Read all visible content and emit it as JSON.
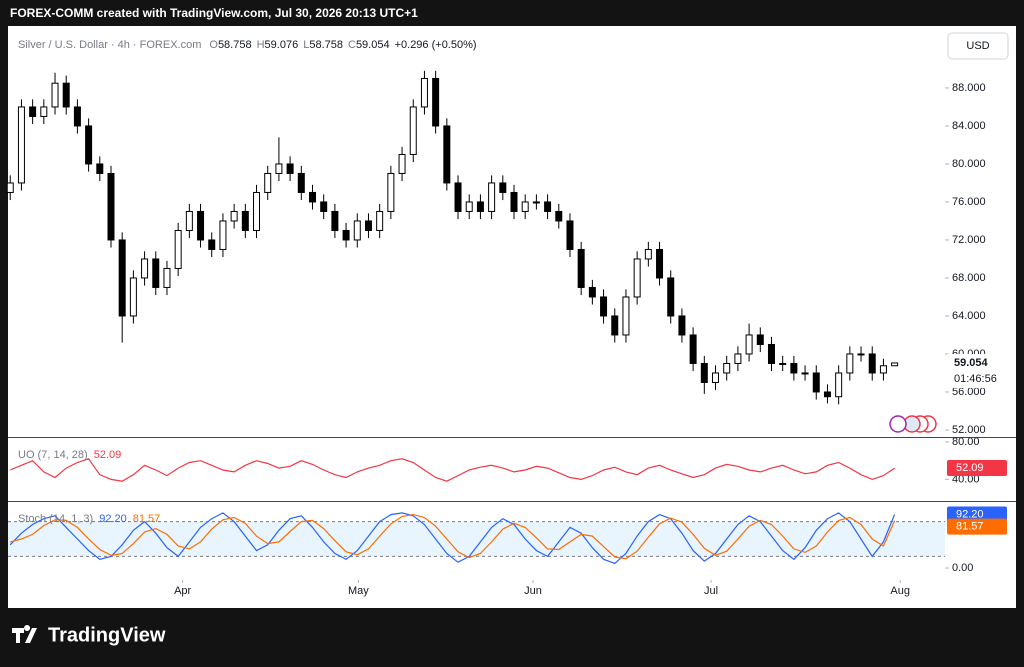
{
  "header": {
    "attribution": "FOREX-COMM created with TradingView.com, Jul 30, 2026 20:13 UTC+1"
  },
  "chart_data": {
    "type": "candlestick",
    "title": "Silver / U.S. Dollar · 4h · FOREX.com",
    "ohlc_prefixes": [
      "O",
      "H",
      "L",
      "C"
    ],
    "change": "+0.296 (+0.50%)",
    "currency": "USD",
    "countdown": "01:46:56",
    "up_color": "#ffffff",
    "down_color": "#000000",
    "wick_color": "#000000",
    "open": [
      77,
      78,
      86,
      85,
      86,
      88.5,
      86,
      84,
      80,
      79,
      72,
      64,
      68,
      70,
      67,
      69,
      73,
      75,
      72,
      71,
      74,
      75,
      73,
      77,
      79,
      80,
      79,
      77,
      76,
      75,
      73,
      72,
      74,
      73,
      75,
      79,
      81,
      86,
      89,
      84,
      78,
      75,
      76,
      75,
      78,
      77,
      75,
      76,
      76,
      75,
      74,
      71,
      67,
      66,
      64,
      62,
      66,
      70,
      71,
      68,
      64,
      62,
      59,
      57,
      58,
      59,
      60,
      62,
      61,
      59,
      59,
      58,
      58,
      56,
      55.5,
      58,
      60,
      60,
      58,
      58.758
    ],
    "high": [
      78.8,
      86.8,
      86.8,
      86.8,
      89.6,
      89.3,
      86.8,
      84.8,
      80.8,
      79.8,
      72.8,
      68.8,
      70.8,
      70.8,
      69.8,
      73.8,
      75.8,
      75.8,
      72.8,
      74.8,
      75.8,
      75.8,
      77.8,
      79.8,
      82.8,
      80.8,
      79.8,
      77.8,
      76.8,
      75.8,
      73.8,
      74.8,
      74.8,
      75.8,
      79.8,
      81.8,
      86.8,
      89.8,
      89.8,
      84.8,
      78.8,
      76.8,
      76.8,
      78.8,
      78.8,
      77.8,
      76.8,
      76.8,
      76.8,
      75.8,
      74.8,
      71.8,
      67.8,
      66.8,
      64.8,
      66.8,
      70.8,
      71.8,
      71.8,
      68.8,
      64.8,
      62.8,
      59.8,
      58.8,
      59.8,
      60.8,
      63.2,
      62.8,
      61.8,
      59.8,
      59.8,
      58.8,
      58.8,
      56.8,
      58.8,
      60.8,
      60.8,
      60.8,
      59.5,
      59.076
    ],
    "low": [
      76.2,
      77.2,
      84.2,
      84.2,
      85.2,
      85.2,
      83.2,
      79.2,
      78.2,
      71.2,
      61.2,
      63.2,
      67.2,
      66.2,
      66.2,
      68.2,
      72.2,
      71.2,
      70.2,
      70.2,
      73.2,
      72.2,
      72.2,
      76.2,
      78.2,
      78.2,
      76.2,
      75.2,
      74.2,
      72.2,
      71.2,
      71.2,
      72.2,
      72.2,
      74.2,
      78.2,
      80.2,
      85.2,
      83.2,
      77.2,
      74.2,
      74.2,
      74.2,
      74.2,
      76.2,
      74.2,
      74.2,
      75.2,
      74.2,
      73.2,
      70.2,
      66.2,
      65.2,
      63.2,
      61.2,
      61.2,
      65.2,
      69.2,
      67.2,
      63.2,
      61.2,
      58.2,
      55.8,
      56.2,
      57.2,
      58.2,
      59.2,
      60.2,
      58.2,
      58.2,
      57.2,
      57.2,
      55.2,
      54.8,
      54.7,
      57.2,
      59.2,
      57.2,
      57.2,
      58.758
    ],
    "close": [
      78,
      86,
      85,
      86,
      88.5,
      86,
      84,
      80,
      79,
      72,
      64,
      68,
      70,
      67,
      69,
      73,
      75,
      72,
      71,
      74,
      75,
      73,
      77,
      79,
      80,
      79,
      77,
      76,
      75,
      73,
      72,
      74,
      73,
      75,
      79,
      81,
      86,
      89,
      84,
      78,
      75,
      76,
      75,
      78,
      77,
      75,
      76,
      76,
      75,
      74,
      71,
      67,
      66,
      64,
      62,
      66,
      70,
      71,
      68,
      64,
      62,
      59,
      57,
      58,
      59,
      60,
      62,
      61,
      59,
      59,
      58,
      58,
      56,
      55.5,
      58,
      60,
      60,
      58,
      58.758,
      59.054
    ],
    "ylim": [
      51.26,
      94.1
    ],
    "yticks": [
      {
        "value": 52,
        "label": "52.000"
      },
      {
        "value": 56,
        "label": "56.000"
      },
      {
        "value": 60,
        "label": "60.000"
      },
      {
        "value": 64,
        "label": "64.000"
      },
      {
        "value": 68,
        "label": "68.000"
      },
      {
        "value": 72,
        "label": "72.000"
      },
      {
        "value": 76,
        "label": "76.000"
      },
      {
        "value": 80,
        "label": "80.000"
      },
      {
        "value": 84,
        "label": "84.000"
      },
      {
        "value": 88,
        "label": "88.000"
      }
    ],
    "xlim": [
      -0.2,
      83.5
    ],
    "xticks": [
      {
        "value": 15.4,
        "label": "Apr"
      },
      {
        "value": 31.1,
        "label": "May"
      },
      {
        "value": 46.7,
        "label": "Jun"
      },
      {
        "value": 62.6,
        "label": "Jul"
      },
      {
        "value": 79.5,
        "label": "Aug"
      }
    ]
  },
  "indicators": [
    {
      "type": "line",
      "title": "UO (7, 14, 28)",
      "ylim": [
        17.9,
        83.2
      ],
      "yticks": [
        {
          "value": 40,
          "label": "40.00"
        },
        {
          "value": 80,
          "label": "80.00"
        }
      ],
      "series": [
        {
          "color": "#f23645",
          "values": [
            50,
            55,
            60,
            48,
            42,
            52,
            58,
            62,
            45,
            40,
            38,
            45,
            55,
            50,
            44,
            52,
            58,
            60,
            55,
            50,
            48,
            55,
            60,
            57,
            52,
            54,
            60,
            56,
            50,
            45,
            42,
            48,
            52,
            55,
            60,
            62,
            58,
            50,
            42,
            38,
            44,
            50,
            53,
            55,
            52,
            48,
            50,
            54,
            52,
            47,
            42,
            40,
            44,
            50,
            53,
            48,
            45,
            52,
            55,
            50,
            46,
            42,
            45,
            52,
            56,
            54,
            50,
            48,
            52,
            55,
            50,
            46,
            48,
            55,
            58,
            52,
            45,
            40,
            44,
            52.09
          ]
        }
      ]
    },
    {
      "type": "line",
      "title": "Stoch (14, 1, 3)",
      "ylim": [
        -20.6,
        112
      ],
      "yticks": [
        {
          "value": 0,
          "label": "0.00"
        }
      ],
      "bands": [
        20,
        80
      ],
      "band_color": "#2196f3",
      "series": [
        {
          "color": "#2962ff",
          "values": [
            40,
            60,
            75,
            85,
            90,
            70,
            50,
            30,
            15,
            20,
            40,
            65,
            80,
            60,
            35,
            20,
            45,
            70,
            85,
            95,
            80,
            55,
            30,
            40,
            65,
            85,
            90,
            70,
            45,
            25,
            15,
            30,
            55,
            80,
            92,
            95,
            90,
            75,
            50,
            25,
            10,
            20,
            45,
            70,
            85,
            75,
            50,
            30,
            20,
            45,
            70,
            60,
            35,
            15,
            8,
            25,
            55,
            80,
            92,
            85,
            60,
            30,
            12,
            25,
            50,
            75,
            90,
            80,
            55,
            30,
            15,
            35,
            65,
            85,
            95,
            80,
            50,
            20,
            45,
            92.2
          ],
          "value_labels": [
            null,
            null,
            null,
            null,
            null,
            null,
            null,
            null,
            null,
            null,
            null,
            null,
            null,
            null,
            null,
            null,
            null,
            null,
            null,
            null,
            null,
            null,
            null,
            null,
            null,
            null,
            null,
            null,
            null,
            null,
            null,
            null,
            null,
            null,
            null,
            null,
            null,
            null,
            null,
            null,
            null,
            null,
            null,
            null,
            null,
            null,
            null,
            null,
            null,
            null,
            null,
            null,
            null,
            null,
            null,
            null,
            null,
            null,
            null,
            null,
            null,
            null,
            null,
            null,
            null,
            null,
            null,
            null,
            null,
            null,
            null,
            null,
            null,
            null,
            null,
            null,
            null,
            null,
            null,
            "92.20"
          ]
        },
        {
          "color": "#ff6d00",
          "values": [
            45,
            50,
            58,
            73,
            83,
            82,
            70,
            50,
            32,
            22,
            25,
            42,
            62,
            68,
            58,
            38,
            33,
            45,
            67,
            83,
            87,
            77,
            55,
            42,
            45,
            63,
            80,
            82,
            68,
            47,
            28,
            23,
            33,
            55,
            76,
            89,
            92,
            87,
            72,
            50,
            28,
            18,
            25,
            45,
            67,
            77,
            70,
            52,
            33,
            32,
            45,
            58,
            55,
            37,
            19,
            16,
            29,
            53,
            76,
            86,
            79,
            58,
            34,
            22,
            29,
            50,
            72,
            82,
            75,
            55,
            33,
            27,
            38,
            62,
            82,
            87,
            75,
            50,
            38,
            81.57
          ]
        }
      ]
    }
  ],
  "footer": {
    "brand": "TradingView"
  }
}
